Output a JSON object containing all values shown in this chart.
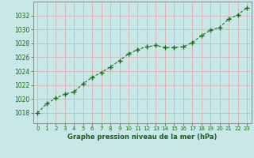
{
  "x": [
    0,
    1,
    2,
    3,
    4,
    5,
    6,
    7,
    8,
    9,
    10,
    11,
    12,
    13,
    14,
    15,
    16,
    17,
    18,
    19,
    20,
    21,
    22,
    23
  ],
  "y": [
    1018.0,
    1019.3,
    1020.1,
    1020.7,
    1021.0,
    1022.2,
    1023.1,
    1023.8,
    1024.6,
    1025.5,
    1026.5,
    1027.1,
    1027.5,
    1027.7,
    1027.4,
    1027.4,
    1027.5,
    1028.1,
    1029.1,
    1029.9,
    1030.3,
    1031.5,
    1032.1,
    1033.1
  ],
  "line_color": "#1a6b1a",
  "marker": "+",
  "bg_color": "#c8e8e8",
  "grid_color": "#d8b8b8",
  "xlabel": "Graphe pression niveau de la mer (hPa)",
  "xlabel_color": "#1a5c1a",
  "tick_color": "#1a6b1a",
  "spine_color": "#888888",
  "ylim": [
    1016.5,
    1034
  ],
  "xlim": [
    -0.5,
    23.5
  ],
  "yticks": [
    1018,
    1020,
    1022,
    1024,
    1026,
    1028,
    1030,
    1032
  ],
  "xticks": [
    0,
    1,
    2,
    3,
    4,
    5,
    6,
    7,
    8,
    9,
    10,
    11,
    12,
    13,
    14,
    15,
    16,
    17,
    18,
    19,
    20,
    21,
    22,
    23
  ]
}
